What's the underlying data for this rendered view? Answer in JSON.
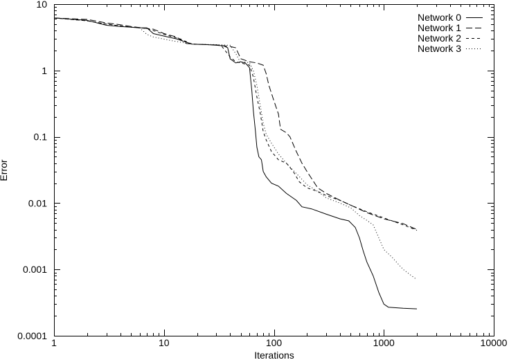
{
  "chart_data": {
    "type": "line",
    "title": "",
    "xlabel": "Iterations",
    "ylabel": "Error",
    "xscale": "log",
    "yscale": "log",
    "xlim": [
      1,
      10000
    ],
    "ylim": [
      0.0001,
      10
    ],
    "grid": false,
    "legend_position": "top-right",
    "x_ticks": [
      {
        "value": 1,
        "label": "1"
      },
      {
        "value": 10,
        "label": "10"
      },
      {
        "value": 100,
        "label": "100"
      },
      {
        "value": 1000,
        "label": "1000"
      },
      {
        "value": 10000,
        "label": "10000"
      }
    ],
    "y_ticks": [
      {
        "value": 0.0001,
        "label": "0.0001"
      },
      {
        "value": 0.001,
        "label": "0.001"
      },
      {
        "value": 0.01,
        "label": "0.01"
      },
      {
        "value": 0.1,
        "label": "0.1"
      },
      {
        "value": 1,
        "label": "1"
      },
      {
        "value": 10,
        "label": "10"
      }
    ],
    "series": [
      {
        "name": "Network 0",
        "dash": "",
        "points": [
          [
            1,
            6.2
          ],
          [
            2,
            5.7
          ],
          [
            3,
            4.8
          ],
          [
            4,
            4.6
          ],
          [
            5,
            4.5
          ],
          [
            6,
            4.4
          ],
          [
            7,
            4.4
          ],
          [
            8,
            3.6
          ],
          [
            10,
            3.3
          ],
          [
            13,
            3.0
          ],
          [
            18,
            2.5
          ],
          [
            25,
            2.45
          ],
          [
            30,
            2.4
          ],
          [
            35,
            2.35
          ],
          [
            38,
            2.2
          ],
          [
            40,
            1.5
          ],
          [
            45,
            1.3
          ],
          [
            50,
            1.35
          ],
          [
            55,
            1.3
          ],
          [
            60,
            1.1
          ],
          [
            63,
            0.5
          ],
          [
            65,
            0.25
          ],
          [
            68,
            0.12
          ],
          [
            70,
            0.07
          ],
          [
            73,
            0.05
          ],
          [
            77,
            0.045
          ],
          [
            80,
            0.03
          ],
          [
            85,
            0.025
          ],
          [
            95,
            0.02
          ],
          [
            110,
            0.018
          ],
          [
            130,
            0.014
          ],
          [
            160,
            0.011
          ],
          [
            180,
            0.0088
          ],
          [
            220,
            0.0082
          ],
          [
            300,
            0.0068
          ],
          [
            400,
            0.0058
          ],
          [
            480,
            0.0054
          ],
          [
            550,
            0.0043
          ],
          [
            600,
            0.003
          ],
          [
            650,
            0.0019
          ],
          [
            700,
            0.0013
          ],
          [
            800,
            0.0008
          ],
          [
            900,
            0.00045
          ],
          [
            1000,
            0.0003
          ],
          [
            1100,
            0.00027
          ],
          [
            1500,
            0.00026
          ],
          [
            2000,
            0.000255
          ]
        ]
      },
      {
        "name": "Network 1",
        "dash": "9,4",
        "points": [
          [
            1,
            6.2
          ],
          [
            1.5,
            6.0
          ],
          [
            2,
            5.9
          ],
          [
            3,
            5.2
          ],
          [
            4,
            4.9
          ],
          [
            5,
            4.6
          ],
          [
            7,
            4.3
          ],
          [
            8,
            4.2
          ],
          [
            10,
            3.6
          ],
          [
            13,
            3.2
          ],
          [
            16,
            2.55
          ],
          [
            20,
            2.48
          ],
          [
            30,
            2.43
          ],
          [
            40,
            2.3
          ],
          [
            45,
            2.2
          ],
          [
            50,
            1.5
          ],
          [
            60,
            1.35
          ],
          [
            70,
            1.3
          ],
          [
            80,
            1.2
          ],
          [
            85,
            0.9
          ],
          [
            90,
            0.6
          ],
          [
            100,
            0.35
          ],
          [
            110,
            0.22
          ],
          [
            115,
            0.13
          ],
          [
            130,
            0.115
          ],
          [
            140,
            0.1
          ],
          [
            160,
            0.06
          ],
          [
            180,
            0.04
          ],
          [
            200,
            0.03
          ],
          [
            250,
            0.017
          ],
          [
            300,
            0.014
          ],
          [
            400,
            0.011
          ],
          [
            500,
            0.0093
          ],
          [
            700,
            0.0072
          ],
          [
            1000,
            0.0058
          ],
          [
            1500,
            0.0049
          ],
          [
            2000,
            0.004
          ]
        ]
      },
      {
        "name": "Network 2",
        "dash": "4,4",
        "points": [
          [
            1,
            6.2
          ],
          [
            2,
            5.6
          ],
          [
            3,
            5.0
          ],
          [
            4,
            4.7
          ],
          [
            5,
            4.5
          ],
          [
            7,
            4.3
          ],
          [
            8,
            4.0
          ],
          [
            10,
            3.5
          ],
          [
            14,
            3.0
          ],
          [
            18,
            2.5
          ],
          [
            25,
            2.45
          ],
          [
            33,
            2.4
          ],
          [
            40,
            1.6
          ],
          [
            45,
            1.35
          ],
          [
            50,
            1.3
          ],
          [
            55,
            1.25
          ],
          [
            60,
            1.2
          ],
          [
            65,
            0.8
          ],
          [
            70,
            0.4
          ],
          [
            75,
            0.23
          ],
          [
            80,
            0.12
          ],
          [
            85,
            0.09
          ],
          [
            95,
            0.06
          ],
          [
            110,
            0.045
          ],
          [
            130,
            0.04
          ],
          [
            150,
            0.03
          ],
          [
            170,
            0.021
          ],
          [
            200,
            0.017
          ],
          [
            250,
            0.015
          ],
          [
            300,
            0.013
          ],
          [
            400,
            0.011
          ],
          [
            500,
            0.0093
          ],
          [
            700,
            0.0074
          ],
          [
            1000,
            0.006
          ],
          [
            1500,
            0.0047
          ],
          [
            2000,
            0.0039
          ]
        ]
      },
      {
        "name": "Network 3",
        "dash": "1,3",
        "points": [
          [
            1,
            6.2
          ],
          [
            2,
            5.6
          ],
          [
            3,
            5.0
          ],
          [
            5,
            4.5
          ],
          [
            6,
            4.4
          ],
          [
            7,
            3.5
          ],
          [
            8,
            3.2
          ],
          [
            12,
            2.8
          ],
          [
            18,
            2.5
          ],
          [
            30,
            2.45
          ],
          [
            40,
            2.4
          ],
          [
            45,
            1.8
          ],
          [
            50,
            1.3
          ],
          [
            55,
            1.35
          ],
          [
            60,
            1.3
          ],
          [
            65,
            1.0
          ],
          [
            70,
            0.6
          ],
          [
            75,
            0.3
          ],
          [
            80,
            0.16
          ],
          [
            85,
            0.11
          ],
          [
            95,
            0.08
          ],
          [
            110,
            0.055
          ],
          [
            130,
            0.04
          ],
          [
            160,
            0.028
          ],
          [
            200,
            0.019
          ],
          [
            250,
            0.015
          ],
          [
            300,
            0.012
          ],
          [
            400,
            0.01
          ],
          [
            500,
            0.0085
          ],
          [
            600,
            0.0065
          ],
          [
            700,
            0.0055
          ],
          [
            800,
            0.0047
          ],
          [
            900,
            0.003
          ],
          [
            1000,
            0.002
          ],
          [
            1200,
            0.0015
          ],
          [
            1500,
            0.001
          ],
          [
            2000,
            0.0007
          ]
        ]
      }
    ]
  }
}
